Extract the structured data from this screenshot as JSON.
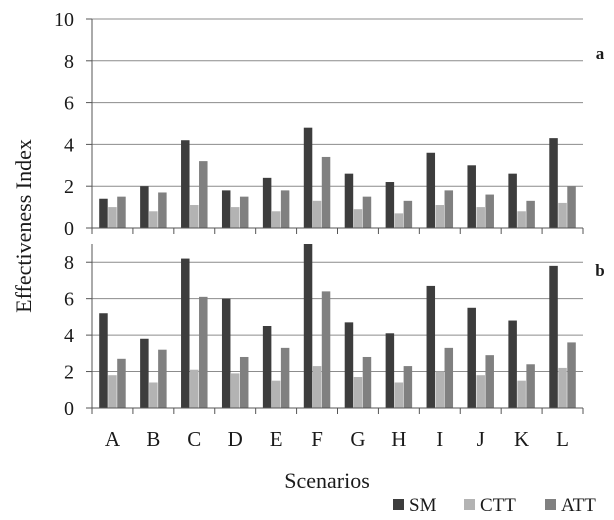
{
  "chart_data": {
    "type": "bar",
    "ylabel": "Effectiveness Index",
    "xlabel": "Scenarios",
    "categories": [
      "A",
      "B",
      "C",
      "D",
      "E",
      "F",
      "G",
      "H",
      "I",
      "J",
      "K",
      "L"
    ],
    "legend": {
      "position": "bottom-right"
    },
    "grid": {
      "y": true
    },
    "colors": {
      "SM": "#3d3d3d",
      "CTT": "#b3b3b3",
      "ATT": "#808080"
    },
    "panels": [
      {
        "label": "a",
        "ylim": [
          0,
          10
        ],
        "yticks": [
          0,
          2,
          4,
          6,
          8,
          10
        ],
        "series": [
          {
            "name": "SM",
            "values": [
              1.4,
              2.0,
              4.2,
              1.8,
              2.4,
              4.8,
              2.6,
              2.2,
              3.6,
              3.0,
              2.6,
              4.3
            ]
          },
          {
            "name": "CTT",
            "values": [
              1.0,
              0.8,
              1.1,
              1.0,
              0.8,
              1.3,
              0.9,
              0.7,
              1.1,
              1.0,
              0.8,
              1.2
            ]
          },
          {
            "name": "ATT",
            "values": [
              1.5,
              1.7,
              3.2,
              1.5,
              1.8,
              3.4,
              1.5,
              1.3,
              1.8,
              1.6,
              1.3,
              2.0
            ]
          }
        ]
      },
      {
        "label": "b",
        "ylim": [
          0,
          9
        ],
        "yticks": [
          0,
          2,
          4,
          6,
          8
        ],
        "series": [
          {
            "name": "SM",
            "values": [
              5.2,
              3.8,
              8.2,
              6.0,
              4.5,
              9.0,
              4.7,
              4.1,
              6.7,
              5.5,
              4.8,
              7.8
            ]
          },
          {
            "name": "CTT",
            "values": [
              1.8,
              1.4,
              2.1,
              1.9,
              1.5,
              2.3,
              1.7,
              1.4,
              2.0,
              1.8,
              1.5,
              2.2
            ]
          },
          {
            "name": "ATT",
            "values": [
              2.7,
              3.2,
              6.1,
              2.8,
              3.3,
              6.4,
              2.8,
              2.3,
              3.3,
              2.9,
              2.4,
              3.6
            ]
          }
        ]
      }
    ]
  }
}
